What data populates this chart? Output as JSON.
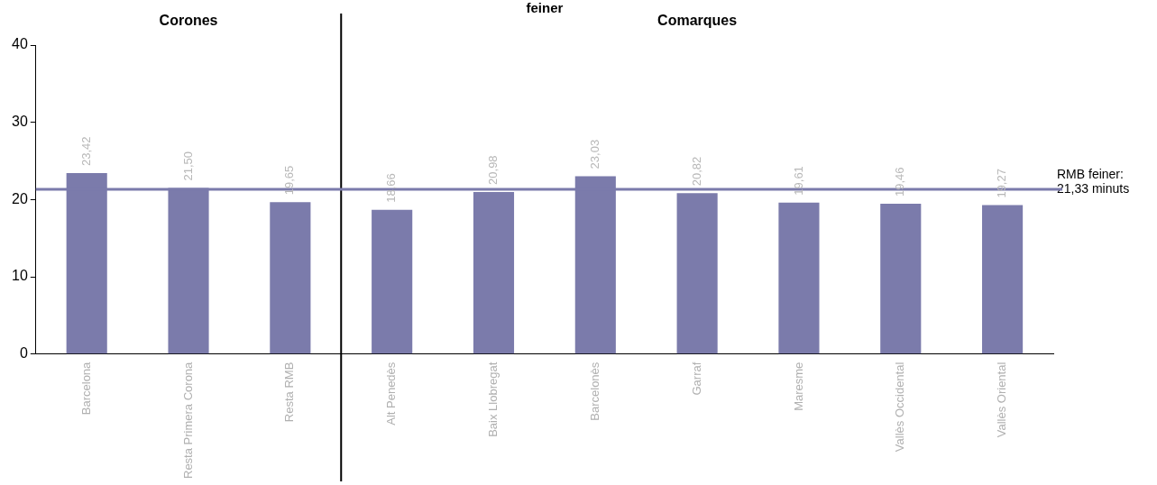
{
  "chart_data": {
    "type": "bar",
    "title": "feiner",
    "categories": [
      "Barcelona",
      "Resta Primera Corona",
      "Resta RMB",
      "Alt Penedès",
      "Baix Llobregat",
      "Barcelonès",
      "Garraf",
      "Maresme",
      "Vallès Occidental",
      "Vallès Oriental"
    ],
    "values": [
      23.42,
      21.5,
      19.65,
      18.66,
      20.98,
      23.03,
      20.82,
      19.61,
      19.46,
      19.27
    ],
    "value_labels": [
      "23,42",
      "21,50",
      "19,65",
      "18,66",
      "20,98",
      "23,03",
      "20,82",
      "19,61",
      "19,46",
      "19,27"
    ],
    "color": "#7b7bab",
    "ylim": [
      0,
      40
    ],
    "yticks": [
      0,
      10,
      20,
      30,
      40
    ],
    "grid": false,
    "legend": false,
    "ref_lines": [
      {
        "axis": "y",
        "value": 21.33,
        "label": "RMB feiner: 21,33 minuts",
        "color": "#7b7bab"
      }
    ],
    "annotations": [
      "Corones",
      "Comarques"
    ]
  }
}
